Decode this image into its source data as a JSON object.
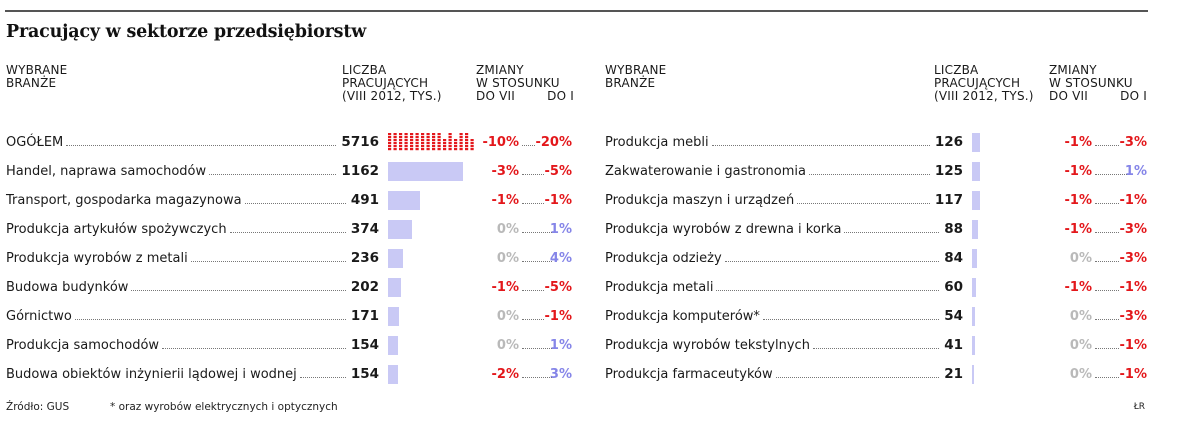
{
  "title": "Pracujący w sektorze przedsiębiorstw",
  "headers": {
    "industries": [
      "WYBRANE",
      "BRANŻE"
    ],
    "employees": [
      "LICZBA",
      "PRACUJĄCYCH",
      "(VIII 2012, TYS.)"
    ],
    "changes": [
      "ZMIANY",
      "W STOSUNKU"
    ],
    "vs_vii": "DO VII",
    "vs_i": "DO I"
  },
  "colors": {
    "negative": "#e3171b",
    "positive": "#8585e8",
    "zero": "#b9b9b9",
    "bar": "#c9c9f5",
    "total_marks": "#e3171b"
  },
  "chart_data": {
    "type": "table",
    "columns": [
      "Branża",
      "Liczba pracujących (VIII 2012, tys.)",
      "Zmiana do VII (%)",
      "Zmiana do I (%)"
    ],
    "rows_left": [
      {
        "name": "OGÓŁEM",
        "value": "5716",
        "vs_vii": "-10%",
        "vs_i": "-20%"
      },
      {
        "name": "Handel, naprawa samochodów",
        "value": "1162",
        "vs_vii": "-3%",
        "vs_i": "-5%"
      },
      {
        "name": "Transport, gospodarka magazynowa",
        "value": "491",
        "vs_vii": "-1%",
        "vs_i": "-1%"
      },
      {
        "name": "Produkcja artykułów spożywczych",
        "value": "374",
        "vs_vii": "0%",
        "vs_i": "1%"
      },
      {
        "name": "Produkcja wyrobów z metali",
        "value": "236",
        "vs_vii": "0%",
        "vs_i": "4%"
      },
      {
        "name": "Budowa budynków",
        "value": "202",
        "vs_vii": "-1%",
        "vs_i": "-5%"
      },
      {
        "name": "Górnictwo",
        "value": "171",
        "vs_vii": "0%",
        "vs_i": "-1%"
      },
      {
        "name": "Produkcja samochodów",
        "value": "154",
        "vs_vii": "0%",
        "vs_i": "1%"
      },
      {
        "name": "Budowa obiektów inżynierii lądowej i wodnej",
        "value": "154",
        "vs_vii": "-2%",
        "vs_i": "3%"
      }
    ],
    "rows_right": [
      {
        "name": "Produkcja mebli",
        "value": "126",
        "vs_vii": "-1%",
        "vs_i": "-3%"
      },
      {
        "name": "Zakwaterowanie i gastronomia",
        "value": "125",
        "vs_vii": "-1%",
        "vs_i": "1%"
      },
      {
        "name": "Produkcja maszyn i urządzeń",
        "value": "117",
        "vs_vii": "-1%",
        "vs_i": "-1%"
      },
      {
        "name": "Produkcja wyrobów z drewna i korka",
        "value": "88",
        "vs_vii": "-1%",
        "vs_i": "-3%"
      },
      {
        "name": "Produkcja odzieży",
        "value": "84",
        "vs_vii": "0%",
        "vs_i": "-3%"
      },
      {
        "name": "Produkcja metali",
        "value": "60",
        "vs_vii": "-1%",
        "vs_i": "-1%"
      },
      {
        "name": "Produkcja komputerów*",
        "value": "54",
        "vs_vii": "0%",
        "vs_i": "-3%"
      },
      {
        "name": "Produkcja wyrobów tekstylnych",
        "value": "41",
        "vs_vii": "0%",
        "vs_i": "-1%"
      },
      {
        "name": "Produkcja farmaceutyków",
        "value": "21",
        "vs_vii": "0%",
        "vs_i": "-1%"
      }
    ],
    "bar_scale_max": 1162
  },
  "footer": {
    "source": "Źródło: GUS",
    "note": "* oraz wyrobów elektrycznych i optycznych",
    "credit": "ŁR"
  }
}
